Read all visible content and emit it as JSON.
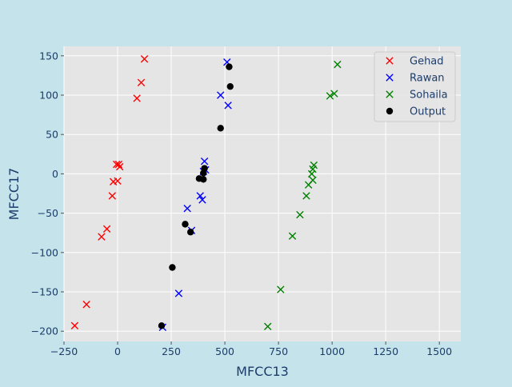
{
  "chart_data": {
    "type": "scatter",
    "title": "",
    "xlabel": "MFCC13",
    "ylabel": "MFCC17",
    "xlim": [
      -250,
      1600
    ],
    "ylim": [
      -213,
      162
    ],
    "xticks": [
      -250,
      0,
      250,
      500,
      750,
      1000,
      1250,
      1500
    ],
    "yticks": [
      -200,
      -150,
      -100,
      -50,
      0,
      50,
      100,
      150
    ],
    "grid": true,
    "legend_position": "top-right",
    "series": [
      {
        "name": "Gehad",
        "marker": "x",
        "color": "#ff0000",
        "points": [
          [
            125,
            146
          ],
          [
            110,
            116
          ],
          [
            90,
            96
          ],
          [
            -5,
            12
          ],
          [
            5,
            12
          ],
          [
            10,
            9
          ],
          [
            -20,
            -10
          ],
          [
            0,
            -9
          ],
          [
            -25,
            -28
          ],
          [
            -50,
            -70
          ],
          [
            -75,
            -80
          ],
          [
            -145,
            -166
          ],
          [
            -200,
            -193
          ]
        ]
      },
      {
        "name": "Rawan",
        "marker": "x",
        "color": "#0000ff",
        "points": [
          [
            510,
            142
          ],
          [
            480,
            100
          ],
          [
            515,
            87
          ],
          [
            405,
            16
          ],
          [
            410,
            5
          ],
          [
            400,
            3
          ],
          [
            385,
            -28
          ],
          [
            395,
            -33
          ],
          [
            325,
            -44
          ],
          [
            345,
            -72
          ],
          [
            285,
            -152
          ],
          [
            210,
            -195
          ]
        ]
      },
      {
        "name": "Sohaila",
        "marker": "x",
        "color": "#008000",
        "points": [
          [
            1025,
            139
          ],
          [
            1010,
            102
          ],
          [
            990,
            99
          ],
          [
            915,
            11
          ],
          [
            910,
            6
          ],
          [
            905,
            0
          ],
          [
            910,
            -8
          ],
          [
            890,
            -14
          ],
          [
            880,
            -28
          ],
          [
            850,
            -52
          ],
          [
            815,
            -79
          ],
          [
            760,
            -147
          ],
          [
            700,
            -194
          ]
        ]
      },
      {
        "name": "Output",
        "marker": "o",
        "color": "#000000",
        "points": [
          [
            520,
            136
          ],
          [
            525,
            111
          ],
          [
            480,
            58
          ],
          [
            405,
            7
          ],
          [
            400,
            1
          ],
          [
            380,
            -6
          ],
          [
            400,
            -7
          ],
          [
            315,
            -64
          ],
          [
            340,
            -74
          ],
          [
            255,
            -119
          ],
          [
            205,
            -193
          ]
        ]
      }
    ]
  }
}
